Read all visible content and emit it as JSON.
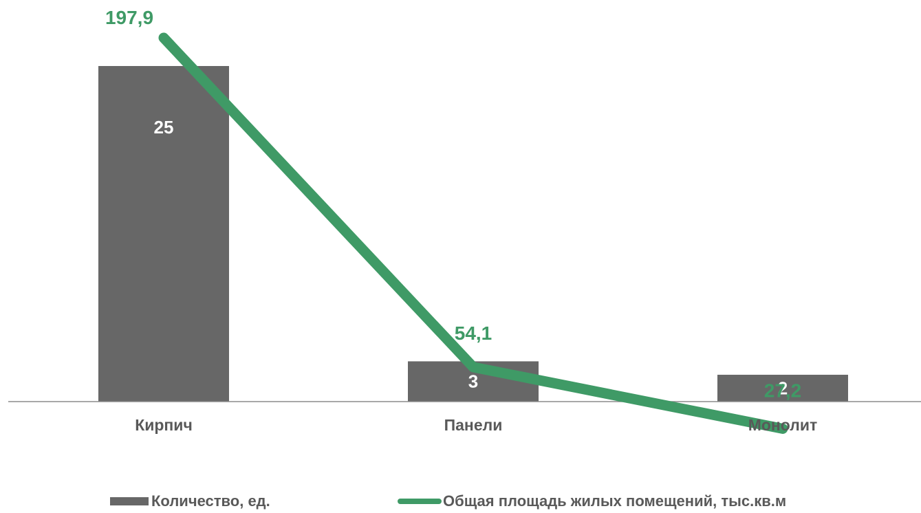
{
  "chart_data": {
    "type": "bar+line",
    "categories": [
      "Кирпич",
      "Панели",
      "Монолит"
    ],
    "series": [
      {
        "name": "Количество, ед.",
        "type": "bar",
        "values": [
          25,
          3,
          2
        ],
        "labels": [
          "25",
          "3",
          "2"
        ],
        "color": "#676767"
      },
      {
        "name": "Общая площадь жилых помещений, тыс.кв.м",
        "type": "line",
        "values": [
          197.9,
          54.1,
          27.2
        ],
        "labels": [
          "197,9",
          "54,1",
          "27,2"
        ],
        "color": "#3f9a66"
      }
    ],
    "bar_axis_max": 25,
    "line_axis_max": 197.9,
    "title": "",
    "xlabel": "",
    "ylabel": "",
    "grid": false,
    "legend_position": "bottom"
  }
}
